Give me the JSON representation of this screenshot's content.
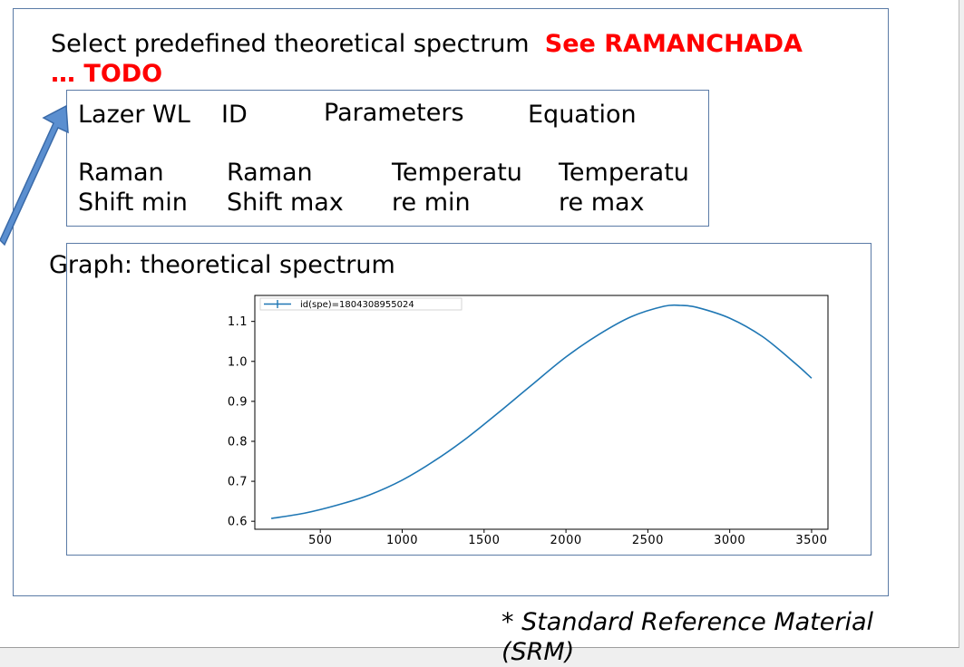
{
  "heading": {
    "prefix": "Select predefined theoretical spectrum",
    "highlight_1": "See RAMANCHADA",
    "highlight_2": "… TODO"
  },
  "params": {
    "row1": [
      "Lazer WL",
      "ID",
      "Parameters",
      "Equation"
    ],
    "row2": [
      "Raman\nShift min",
      "Raman\nShift max",
      "Temperatu\nre min",
      "Temperatu\nre max"
    ]
  },
  "graph": {
    "label": "Graph: theoretical spectrum"
  },
  "footnote": "* Standard Reference Material (SRM)",
  "colors": {
    "accent_red": "#ff0000",
    "frame_blue": "#5b7ba6",
    "arrow_blue": "#5b8fd0",
    "line_blue": "#1f77b4"
  },
  "chart_data": {
    "type": "line",
    "legend": "id(spe)=1804308955024",
    "legend_position": "top-left",
    "xlim": [
      100,
      3600
    ],
    "ylim": [
      0.58,
      1.165
    ],
    "xticks": [
      "500",
      "1000",
      "1500",
      "2000",
      "2500",
      "3000",
      "3500"
    ],
    "xtick_values": [
      500,
      1000,
      1500,
      2000,
      2500,
      3000,
      3500
    ],
    "yticks": [
      "0.6",
      "0.7",
      "0.8",
      "0.9",
      "1.0",
      "1.1"
    ],
    "ytick_values": [
      0.6,
      0.7,
      0.8,
      0.9,
      1.0,
      1.1
    ],
    "series": [
      {
        "name": "id(spe)=1804308955024",
        "x": [
          200,
          400,
          600,
          800,
          1000,
          1200,
          1400,
          1600,
          1800,
          2000,
          2200,
          2400,
          2600,
          2700,
          2800,
          3000,
          3200,
          3400,
          3500
        ],
        "y": [
          0.607,
          0.62,
          0.64,
          0.666,
          0.703,
          0.752,
          0.81,
          0.876,
          0.944,
          1.011,
          1.067,
          1.112,
          1.138,
          1.14,
          1.135,
          1.108,
          1.062,
          0.995,
          0.958
        ]
      }
    ],
    "grid": false
  }
}
